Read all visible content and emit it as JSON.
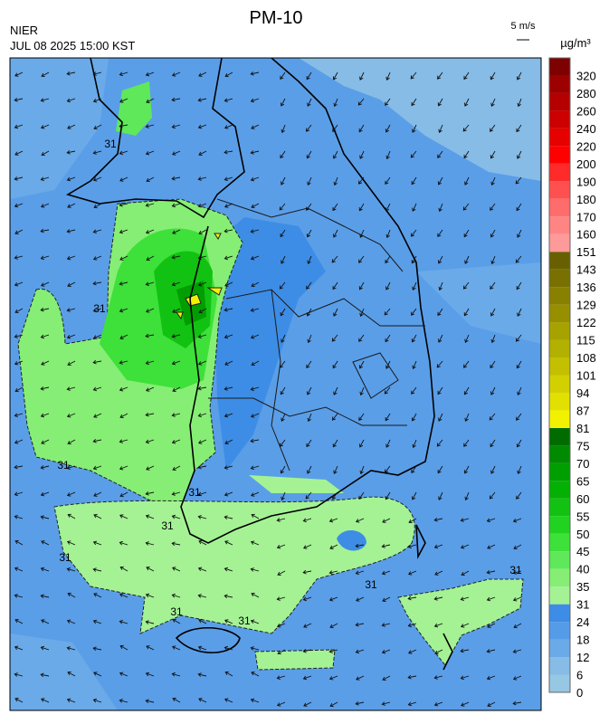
{
  "header": {
    "title": "PM-10",
    "agency": "NIER",
    "datetime": "JUL 08 2025 15:00 KST",
    "wind_scale": "5 m/s"
  },
  "legend": {
    "unit": "µg/m³",
    "levels": [
      0,
      6,
      12,
      18,
      24,
      31,
      35,
      40,
      45,
      50,
      55,
      60,
      65,
      70,
      75,
      81,
      87,
      94,
      101,
      108,
      115,
      122,
      129,
      136,
      143,
      151,
      160,
      170,
      180,
      190,
      200,
      220,
      240,
      260,
      280,
      320
    ],
    "colors": [
      "#96c8e4",
      "#86bce6",
      "#6aaae8",
      "#559ce8",
      "#3d8de6",
      "#a4f294",
      "#86ee74",
      "#5ee85a",
      "#3ee03a",
      "#22d220",
      "#12c212",
      "#04b004",
      "#009e00",
      "#008a00",
      "#006c00",
      "#f2f200",
      "#e2e000",
      "#d2d000",
      "#c2c000",
      "#b2b000",
      "#a6a200",
      "#969000",
      "#888000",
      "#787000",
      "#686000",
      "#ff9a9a",
      "#ff8484",
      "#ff6c6c",
      "#ff5050",
      "#ff2a2a",
      "#ff0000",
      "#e60000",
      "#cc0000",
      "#b40000",
      "#9c0000",
      "#7e0000"
    ]
  },
  "map": {
    "contour_labels": [
      31,
      31,
      31,
      31,
      31,
      31,
      31,
      31,
      31,
      31
    ]
  }
}
